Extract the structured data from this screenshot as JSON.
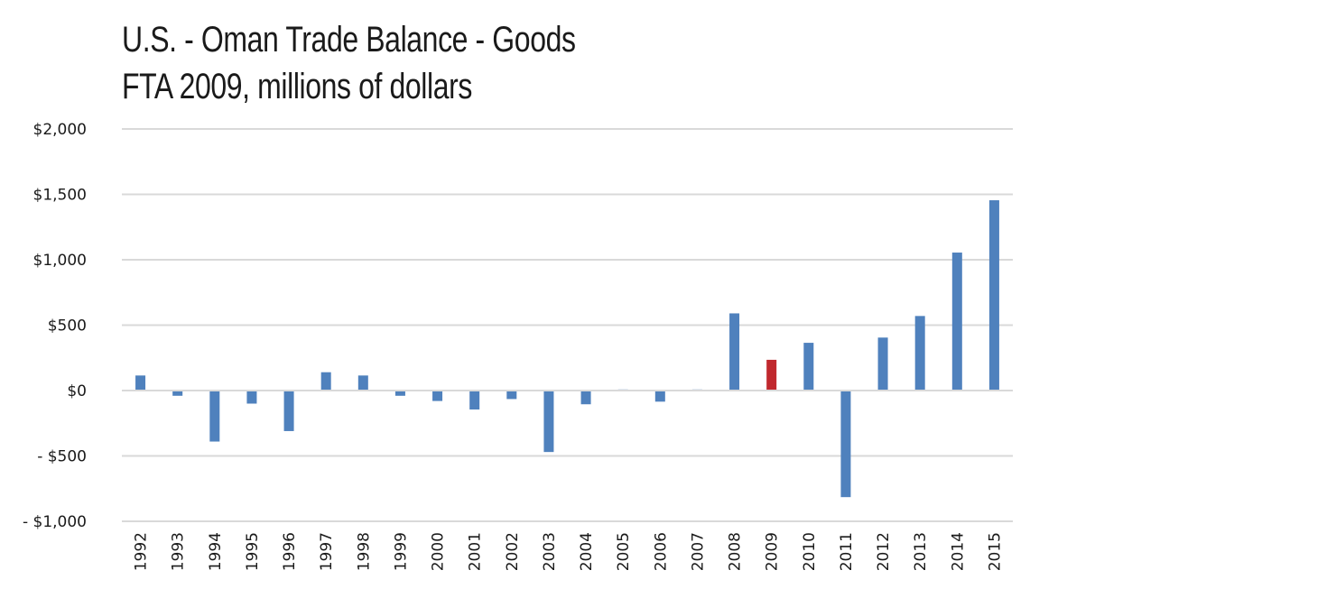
{
  "chart_data": {
    "type": "bar",
    "title": "U.S. - Oman Trade Balance - Goods",
    "subtitle": "FTA 2009, millions of dollars",
    "categories": [
      "1992",
      "1993",
      "1994",
      "1995",
      "1996",
      "1997",
      "1998",
      "1999",
      "2000",
      "2001",
      "2002",
      "2003",
      "2004",
      "2005",
      "2006",
      "2007",
      "2008",
      "2009",
      "2010",
      "2011",
      "2012",
      "2013",
      "2014",
      "2015"
    ],
    "series": [
      {
        "values": [
          115,
          -40,
          -390,
          -100,
          -310,
          140,
          115,
          -40,
          -80,
          -145,
          -65,
          -470,
          -105,
          8,
          -85,
          8,
          590,
          235,
          365,
          -815,
          405,
          570,
          1055,
          1455
        ]
      }
    ],
    "ylim": [
      -1000,
      2000
    ],
    "yticks": [
      2000,
      1500,
      1000,
      500,
      0,
      -500,
      -1000
    ],
    "ytick_labels": [
      "$2,000",
      "$1,500",
      "$1,000",
      "$500",
      "$0",
      "- $500",
      "- $1,000"
    ],
    "grid": true,
    "colors": {
      "bar": "#4f81bd",
      "highlight": "#c0282d",
      "grid": "#d9d9d9"
    },
    "highlight_category": "2009"
  }
}
